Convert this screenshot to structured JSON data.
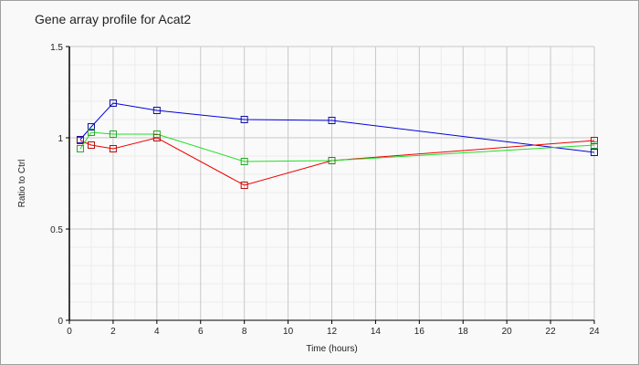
{
  "chart_data": {
    "type": "line",
    "title": "Gene array profile for Acat2",
    "xlabel": "Time (hours)",
    "ylabel": "Ratio to Ctrl",
    "xlim": [
      0,
      24
    ],
    "ylim": [
      0,
      1.5
    ],
    "xticks": [
      "0",
      "2",
      "4",
      "6",
      "8",
      "10",
      "12",
      "14",
      "16",
      "18",
      "20",
      "22",
      "24"
    ],
    "yticks": [
      "0",
      "0.5",
      "1",
      "1.5"
    ],
    "grid": true,
    "marker": "square",
    "x": [
      0.5,
      1,
      2,
      4,
      8,
      12,
      24
    ],
    "series": [
      {
        "color": "#0000dd",
        "values": [
          0.99,
          1.06,
          1.19,
          1.15,
          1.1,
          1.095,
          0.92
        ]
      },
      {
        "color": "#ee0000",
        "values": [
          0.985,
          0.96,
          0.94,
          1.0,
          0.74,
          0.875,
          0.985
        ]
      },
      {
        "color": "#22dd22",
        "values": [
          0.94,
          1.03,
          1.02,
          1.02,
          0.87,
          0.875,
          0.96
        ]
      }
    ]
  }
}
